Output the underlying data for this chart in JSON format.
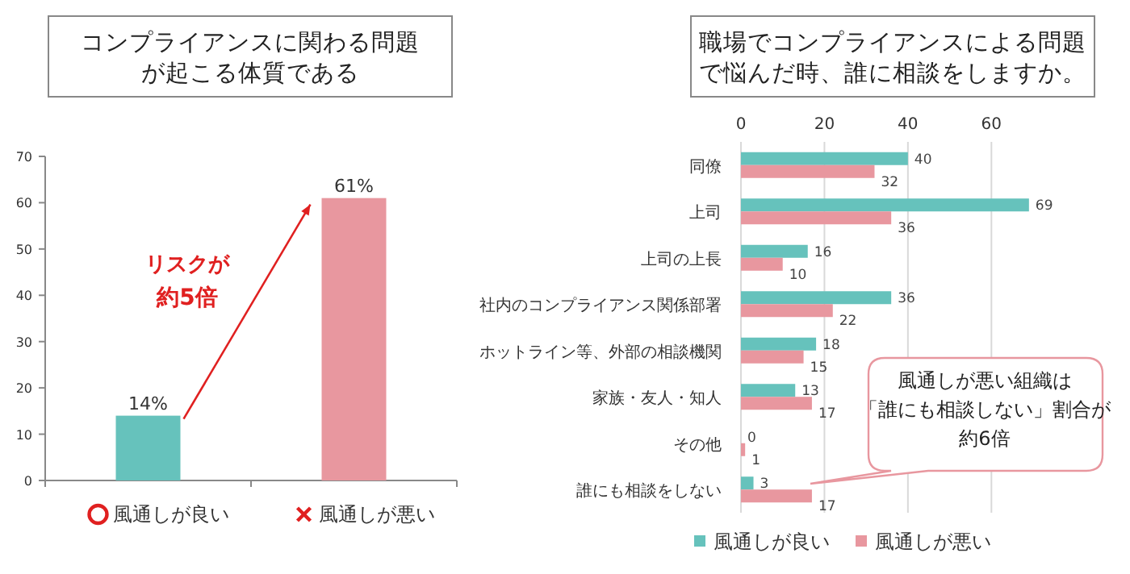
{
  "chart_data": [
    {
      "type": "bar",
      "title": "コンプライアンスに関わる問題が起こる体質である",
      "categories": [
        "風通しが良い",
        "風通しが悪い"
      ],
      "values": [
        14,
        61
      ],
      "colors": [
        "#66c2bc",
        "#e8979f"
      ],
      "value_labels": [
        "14%",
        "61%"
      ],
      "ylim": [
        0,
        70
      ],
      "yticks": [
        0,
        10,
        20,
        30,
        40,
        50,
        60,
        70
      ],
      "grid": false,
      "annotations": [
        "リスクが",
        "約5倍"
      ]
    },
    {
      "type": "bar",
      "orientation": "horizontal",
      "title": "職場でコンプライアンスによる問題で悩んだ時、誰に相談をしますか。",
      "categories": [
        "同僚",
        "上司",
        "上司の上長",
        "社内のコンプライアンス関係部署",
        "ホットライン等、外部の相談機関",
        "家族・友人・知人",
        "その他",
        "誰にも相談をしない"
      ],
      "series": [
        {
          "name": "風通しが良い",
          "color": "#66c2bc",
          "values": [
            40,
            69,
            16,
            36,
            18,
            13,
            0,
            3
          ]
        },
        {
          "name": "風通しが悪い",
          "color": "#e8979f",
          "values": [
            32,
            36,
            10,
            22,
            15,
            17,
            1,
            17
          ]
        }
      ],
      "xlim": [
        0,
        70
      ],
      "xticks": [
        0,
        20,
        40,
        60
      ],
      "grid": "x",
      "legend": "bottom",
      "data_labels": true,
      "annotations": [
        "風通しが悪い組織は",
        "「誰にも相談しない」割合が",
        "約6倍"
      ]
    }
  ]
}
